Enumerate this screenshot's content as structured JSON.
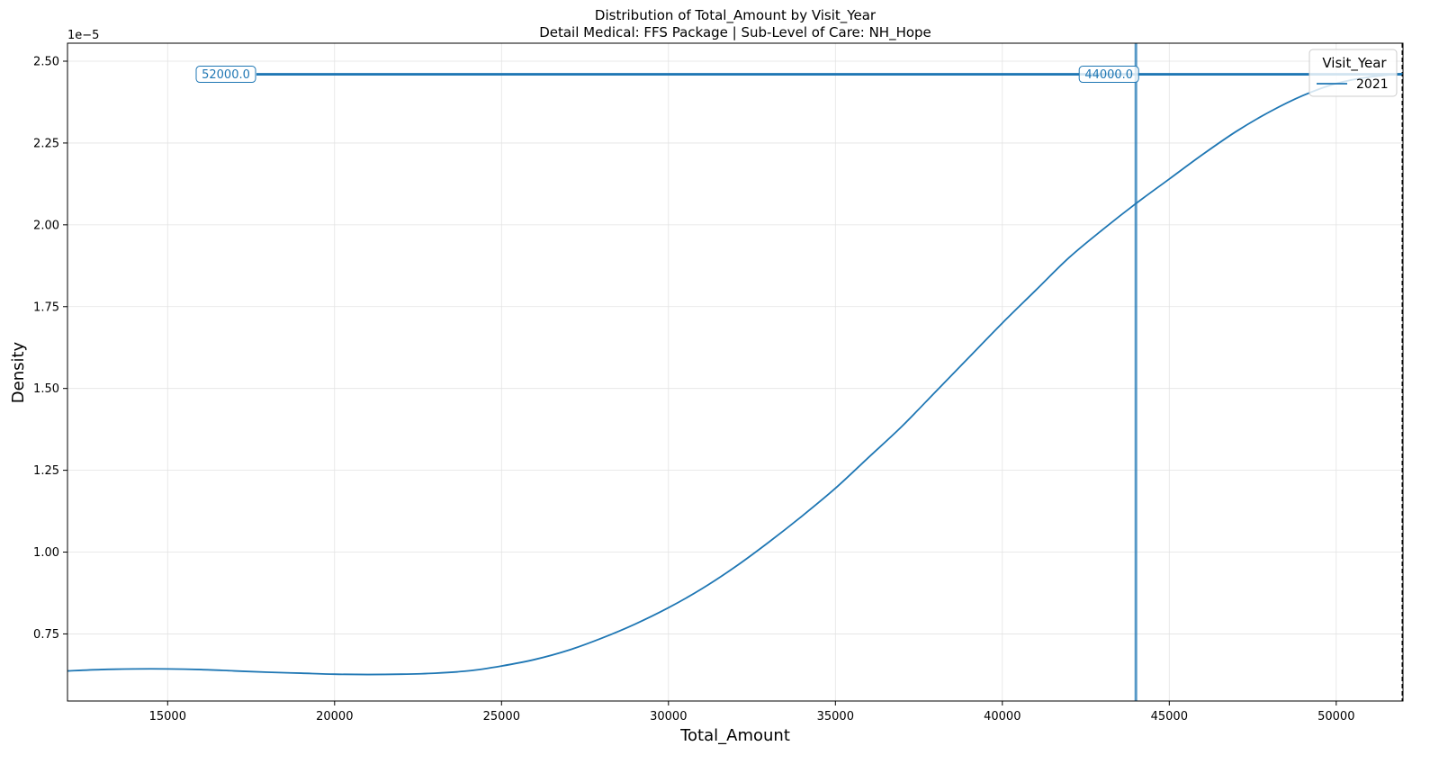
{
  "chart_data": {
    "type": "line",
    "title": "Distribution of Total_Amount by Visit_Year",
    "subtitle": "Detail Medical: FFS Package | Sub-Level of Care: NH_Hope",
    "xlabel": "Total_Amount",
    "ylabel": "Density",
    "y_offset_label": "1e−5",
    "xlim": [
      12000,
      52000
    ],
    "ylim": [
      0.545,
      2.555
    ],
    "xticks": [
      15000,
      20000,
      25000,
      30000,
      35000,
      40000,
      45000,
      50000
    ],
    "xtick_labels": [
      "15000",
      "20000",
      "25000",
      "30000",
      "35000",
      "40000",
      "45000",
      "50000"
    ],
    "yticks": [
      0.75,
      1.0,
      1.25,
      1.5,
      1.75,
      2.0,
      2.25,
      2.5
    ],
    "ytick_labels": [
      "0.75",
      "1.00",
      "1.25",
      "1.50",
      "1.75",
      "2.00",
      "2.25",
      "2.50"
    ],
    "grid": true,
    "legend": {
      "title": "Visit_Year",
      "placement": "top-right"
    },
    "colors": {
      "series": "#1f77b4"
    },
    "series": [
      {
        "name": "2021",
        "x": [
          12000,
          13000,
          14000,
          15000,
          16000,
          17000,
          18000,
          19000,
          20000,
          21000,
          22000,
          23000,
          24000,
          25000,
          26000,
          27000,
          28000,
          29000,
          30000,
          31000,
          32000,
          33000,
          34000,
          35000,
          36000,
          37000,
          38000,
          39000,
          40000,
          41000,
          42000,
          43000,
          44000,
          45000,
          46000,
          47000,
          48000,
          49000,
          50000,
          51000,
          52000
        ],
        "y": [
          0.637,
          0.641,
          0.643,
          0.643,
          0.641,
          0.637,
          0.633,
          0.63,
          0.627,
          0.626,
          0.627,
          0.63,
          0.637,
          0.652,
          0.672,
          0.7,
          0.737,
          0.78,
          0.83,
          0.888,
          0.955,
          1.03,
          1.11,
          1.195,
          1.29,
          1.385,
          1.49,
          1.595,
          1.7,
          1.8,
          1.9,
          1.985,
          2.065,
          2.14,
          2.215,
          2.285,
          2.345,
          2.395,
          2.432,
          2.452,
          2.462
        ]
      }
    ],
    "reference_lines": [
      {
        "orientation": "horizontal",
        "y": 2.46,
        "label": "52000.0"
      },
      {
        "orientation": "vertical",
        "x": 44000,
        "label": "44000.0"
      },
      {
        "orientation": "vertical",
        "x": 52000,
        "style": "dashed"
      }
    ]
  }
}
